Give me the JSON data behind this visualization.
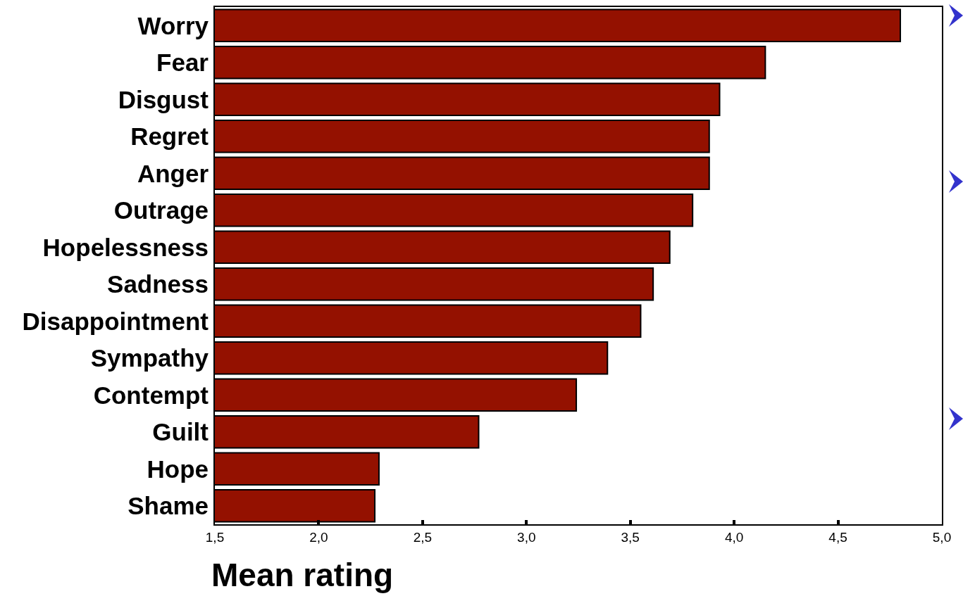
{
  "chart_data": {
    "type": "bar",
    "orientation": "horizontal",
    "categories": [
      "Worry",
      "Fear",
      "Disgust",
      "Regret",
      "Anger",
      "Outrage",
      "Hopelessness",
      "Sadness",
      "Disappointment",
      "Sympathy",
      "Contempt",
      "Guilt",
      "Hope",
      "Shame"
    ],
    "values": [
      4.8,
      4.15,
      3.93,
      3.88,
      3.88,
      3.8,
      3.69,
      3.61,
      3.55,
      3.39,
      3.24,
      2.77,
      2.29,
      2.27
    ],
    "color": "#941100",
    "xlabel": "Mean rating",
    "xlim": [
      1.5,
      5.0
    ],
    "xticks": [
      {
        "value": 1.5,
        "label": "1,5"
      },
      {
        "value": 2.0,
        "label": "2,0"
      },
      {
        "value": 2.5,
        "label": "2,5"
      },
      {
        "value": 3.0,
        "label": "3,0"
      },
      {
        "value": 3.5,
        "label": "3,5"
      },
      {
        "value": 4.0,
        "label": "4,0"
      },
      {
        "value": 4.5,
        "label": "4,5"
      },
      {
        "value": 5.0,
        "label": "5,0"
      }
    ],
    "grid": false
  }
}
